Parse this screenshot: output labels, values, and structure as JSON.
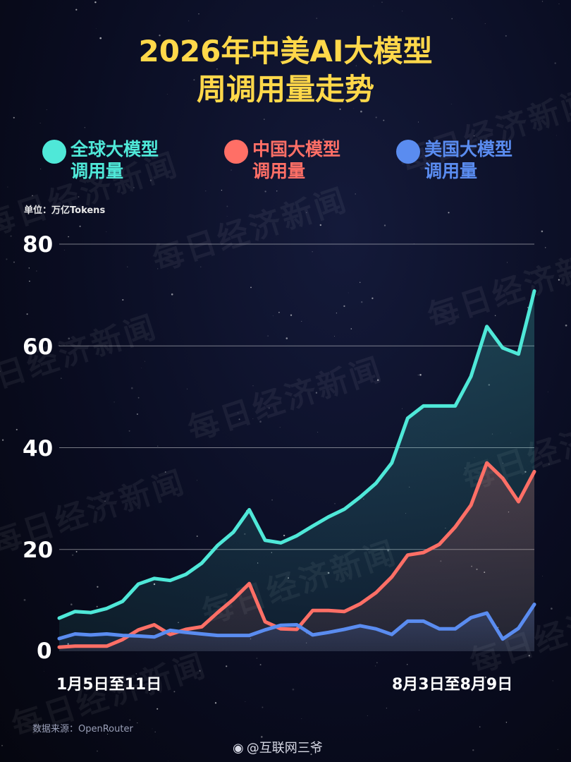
{
  "title_line1": "2026年中美AI大模型",
  "title_line2": "周调用量走势",
  "legend": [
    {
      "label_line1": "全球大模型",
      "label_line2": "调用量",
      "color": "#4fe8d8"
    },
    {
      "label_line1": "中国大模型",
      "label_line2": "调用量",
      "color": "#ff6f66"
    },
    {
      "label_line1": "美国大模型",
      "label_line2": "调用量",
      "color": "#5a8cf0"
    }
  ],
  "unit_label": "单位：万亿Tokens",
  "source_label": "数据来源：OpenRouter",
  "weibo_account": "@互联网三爷",
  "watermark_text": "每日经济新闻",
  "chart_data": {
    "type": "area",
    "x_first_label": "1月5日至11日",
    "x_last_label": "8月3日至8月9日",
    "ylim": [
      0,
      80
    ],
    "yticks": [
      "0",
      "20",
      "40",
      "60",
      "80"
    ],
    "grid": true,
    "legend_position": "top",
    "series": [
      {
        "name": "全球大模型调用量",
        "color": "#4fe8d8",
        "values": [
          6.5,
          7.8,
          7.6,
          8.4,
          9.8,
          13.2,
          14.3,
          13.9,
          15.1,
          17.3,
          20.8,
          23.4,
          27.8,
          21.8,
          21.3,
          22.7,
          24.6,
          26.4,
          27.9,
          30.3,
          33.0,
          37.0,
          45.8,
          48.2,
          48.2,
          48.2,
          54.0,
          63.8,
          59.6,
          58.4,
          70.8
        ]
      },
      {
        "name": "中国大模型调用量",
        "color": "#ff6f66",
        "values": [
          0.8,
          1.0,
          1.0,
          1.0,
          2.3,
          4.2,
          5.2,
          3.3,
          4.3,
          4.8,
          7.6,
          10.2,
          13.3,
          5.8,
          4.4,
          4.3,
          8.0,
          8.0,
          7.8,
          9.3,
          11.5,
          14.6,
          18.9,
          19.4,
          21.0,
          24.4,
          28.7,
          37.0,
          34.0,
          29.4,
          35.3
        ]
      },
      {
        "name": "美国大模型调用量",
        "color": "#5a8cf0",
        "values": [
          2.5,
          3.4,
          3.2,
          3.4,
          3.1,
          3.0,
          2.8,
          4.1,
          3.7,
          3.4,
          3.1,
          3.1,
          3.1,
          4.2,
          5.1,
          5.2,
          3.2,
          3.7,
          4.3,
          5.0,
          4.4,
          3.3,
          5.9,
          5.9,
          4.4,
          4.4,
          6.6,
          7.5,
          2.4,
          4.5,
          9.2
        ]
      }
    ]
  }
}
